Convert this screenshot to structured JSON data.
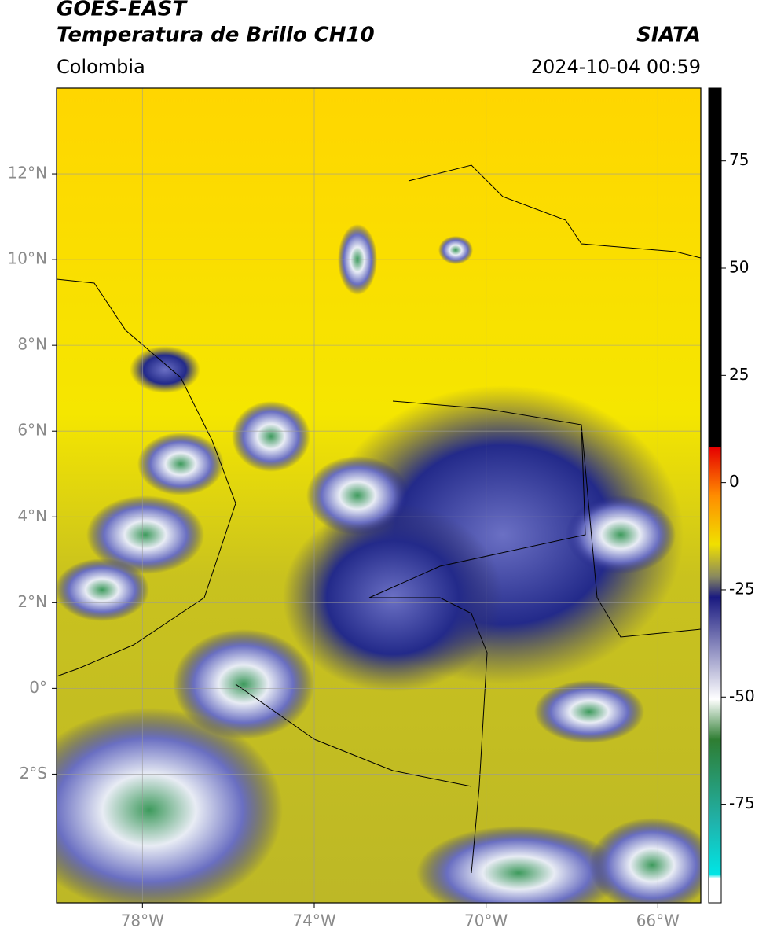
{
  "header": {
    "title": "GOES-EAST",
    "subtitle": "Temperatura de Brillo CH10",
    "source": "SIATA",
    "region": "Colombia",
    "datetime": "2024-10-04 00:59"
  },
  "map": {
    "xlim": [
      -80,
      -65
    ],
    "ylim": [
      -5,
      14
    ],
    "xticks": [
      {
        "value": -78,
        "label": "78°W"
      },
      {
        "value": -74,
        "label": "74°W"
      },
      {
        "value": -70,
        "label": "70°W"
      },
      {
        "value": -66,
        "label": "66°W"
      }
    ],
    "yticks": [
      {
        "value": 12,
        "label": "12°N"
      },
      {
        "value": 10,
        "label": "10°N"
      },
      {
        "value": 8,
        "label": "8°N"
      },
      {
        "value": 6,
        "label": "6°N"
      },
      {
        "value": 4,
        "label": "4°N"
      },
      {
        "value": 2,
        "label": "2°N"
      },
      {
        "value": 0,
        "label": "0°"
      },
      {
        "value": -2,
        "label": "2°S"
      }
    ]
  },
  "colorbar": {
    "lim": [
      -98,
      92
    ],
    "ticks": [
      75,
      50,
      25,
      0,
      -25,
      -50,
      -75
    ]
  }
}
